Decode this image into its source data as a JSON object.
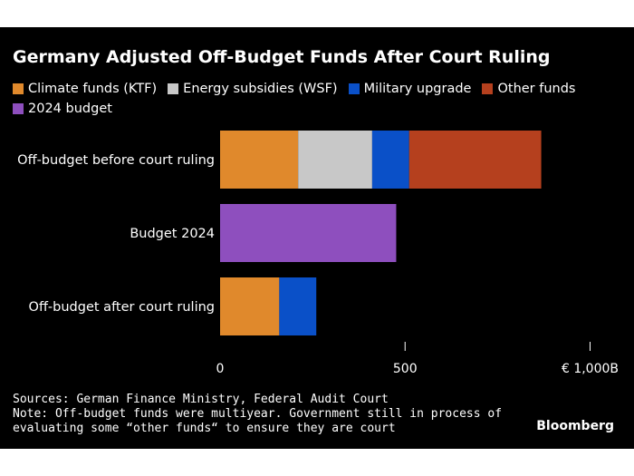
{
  "chart_data": {
    "type": "bar",
    "orientation": "horizontal",
    "stacked": true,
    "title": "Germany Adjusted Off-Budget Funds After Court Ruling",
    "categories": [
      "Off-budget before court ruling",
      "Budget 2024",
      "Off-budget after court ruling"
    ],
    "series": [
      {
        "name": "Climate funds (KTF)",
        "color": "#e0892c",
        "values": [
          211,
          0,
          160
        ]
      },
      {
        "name": "Energy subsidies (WSF)",
        "color": "#c8c8c8",
        "values": [
          200,
          0,
          0
        ]
      },
      {
        "name": "Military upgrade",
        "color": "#0a50c8",
        "values": [
          100,
          0,
          100
        ]
      },
      {
        "name": "Other funds",
        "color": "#b5401e",
        "values": [
          357,
          0,
          0
        ]
      },
      {
        "name": "2024 budget",
        "color": "#8e4fbe",
        "values": [
          0,
          476,
          0
        ]
      }
    ],
    "x_ticks": [
      "0",
      "500",
      "€ 1,000B"
    ],
    "x_tick_values": [
      0,
      500,
      1000
    ],
    "xlim": [
      0,
      1000
    ],
    "legend_position": "top",
    "grid": false
  },
  "footnote": {
    "sources": "Sources: German Finance Ministry, Federal Audit Court",
    "note_line1": "Note: Off-budget funds were multiyear. Government still in process of",
    "note_line2": "evaluating some “other funds“ to ensure they are court"
  },
  "brand": "Bloomberg"
}
